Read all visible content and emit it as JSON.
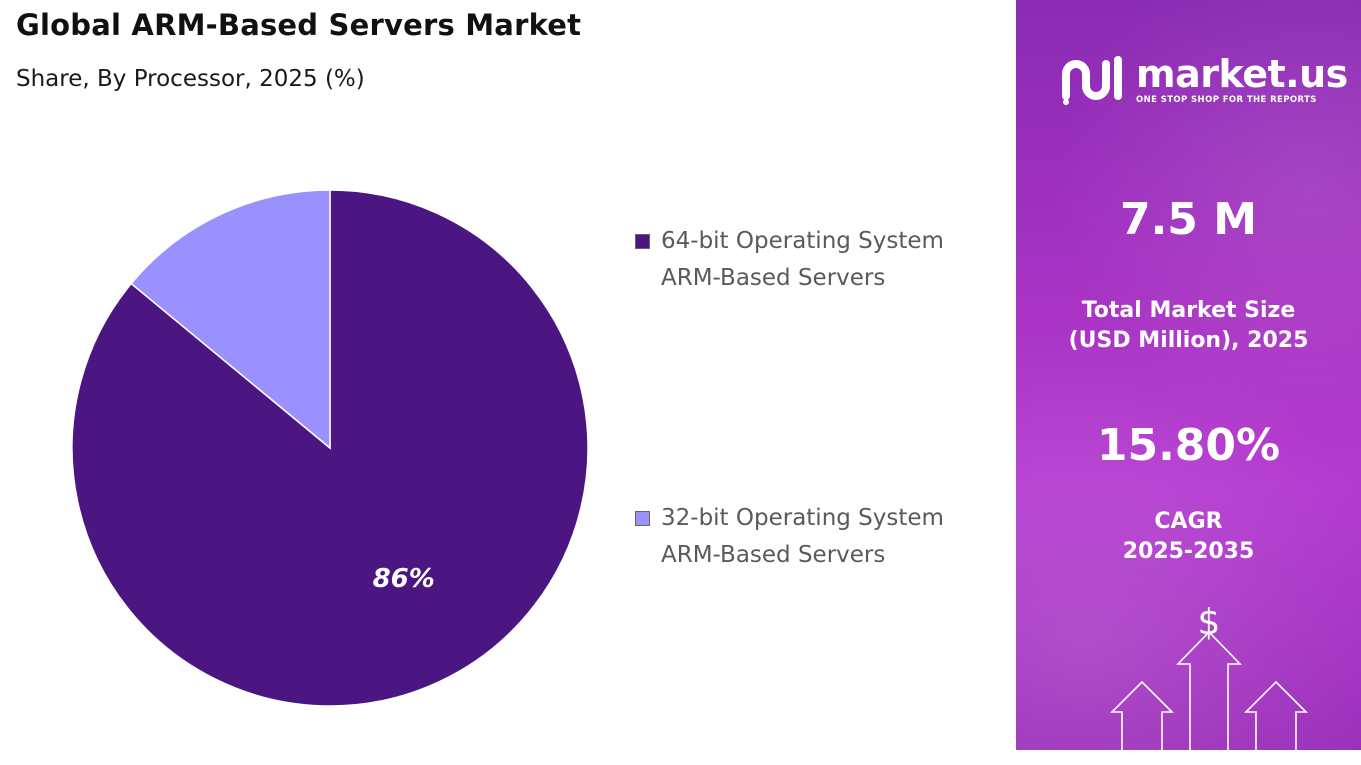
{
  "header": {
    "title": "Global ARM-Based Servers Market",
    "subtitle": "Share, By Processor, 2025 (%)"
  },
  "chart_data": {
    "type": "pie",
    "title": "Global ARM-Based Servers Market",
    "subtitle": "Share, By Processor, 2025 (%)",
    "slices": [
      {
        "label": "64-bit Operating System ARM-Based Servers",
        "line1": "64-bit Operating System",
        "line2": "ARM-Based Servers",
        "value": 86,
        "display": "86%",
        "color": "#4b1682"
      },
      {
        "label": "32-bit Operating System ARM-Based Servers",
        "line1": "32-bit Operating System",
        "line2": "ARM-Based Servers",
        "value": 14,
        "display": "",
        "color": "#9a91ff"
      }
    ],
    "legend_position": "right"
  },
  "sidebar": {
    "logo_name": "market.us",
    "logo_tagline": "ONE STOP SHOP FOR THE REPORTS",
    "market_size_value": "7.5 M",
    "market_size_label_line1": "Total Market Size",
    "market_size_label_line2": "(USD Million), 2025",
    "cagr_value": "15.80%",
    "cagr_label_line1": "CAGR",
    "cagr_label_line2": "2025-2035",
    "dollar_symbol": "$",
    "accent_color": "#a833c4"
  }
}
